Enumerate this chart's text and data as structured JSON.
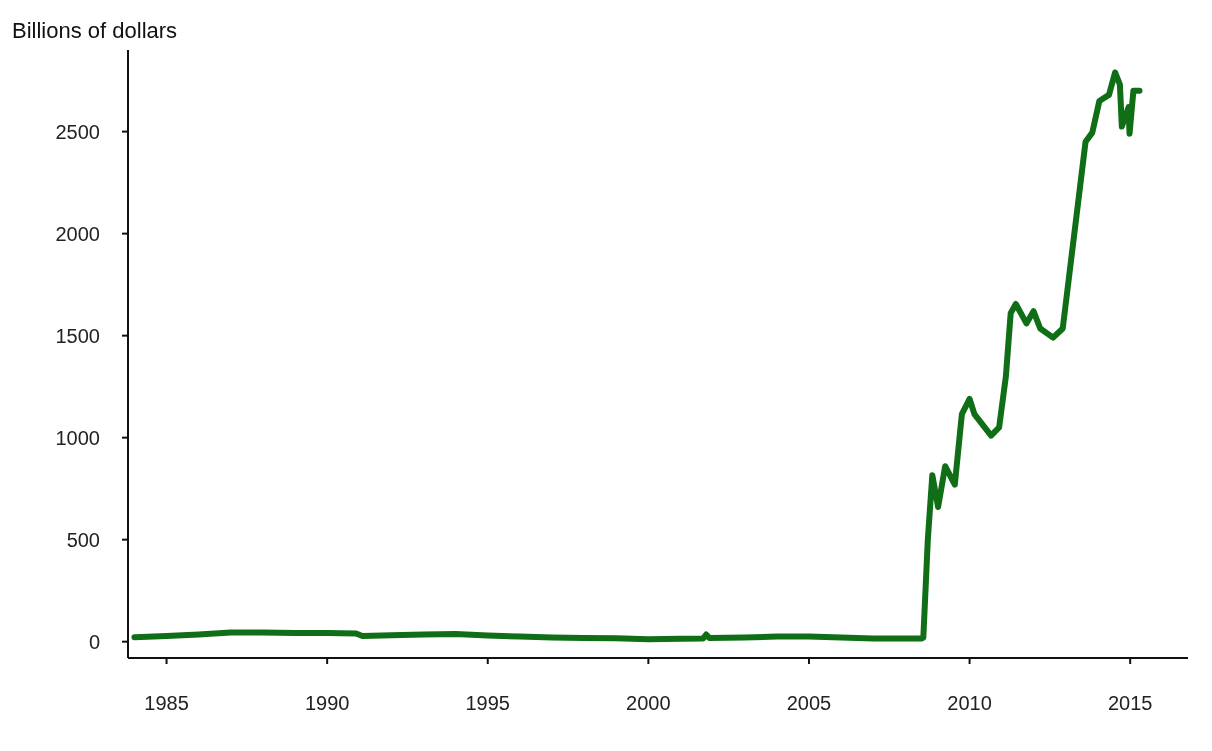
{
  "chart_data": {
    "type": "line",
    "ylabel": "Billions of dollars",
    "x": [
      1984.0,
      1985.0,
      1986.0,
      1987.0,
      1988.0,
      1989.0,
      1990.0,
      1990.9,
      1991.1,
      1992.0,
      1993.0,
      1994.0,
      1995.0,
      1996.0,
      1997.0,
      1998.0,
      1999.0,
      2000.0,
      2001.0,
      2001.7,
      2001.8,
      2001.9,
      2003.0,
      2004.0,
      2005.0,
      2006.0,
      2007.0,
      2008.0,
      2008.5,
      2008.56,
      2008.7,
      2008.84,
      2009.02,
      2009.24,
      2009.54,
      2009.76,
      2010.0,
      2010.15,
      2010.67,
      2010.92,
      2011.13,
      2011.28,
      2011.44,
      2011.77,
      2011.99,
      2012.2,
      2012.6,
      2012.9,
      2013.61,
      2013.82,
      2014.04,
      2014.34,
      2014.53,
      2014.68,
      2014.74,
      2014.95,
      2014.98,
      2015.1,
      2015.29
    ],
    "series": [
      {
        "color": "#0f6e16",
        "values": [
          22,
          28,
          35,
          45,
          45,
          43,
          42,
          40,
          28,
          32,
          35,
          38,
          30,
          25,
          20,
          18,
          17,
          12,
          14,
          15,
          35,
          18,
          20,
          25,
          25,
          20,
          15,
          15,
          15,
          20,
          500,
          816,
          660,
          860,
          770,
          1115,
          1190,
          1115,
          1010,
          1050,
          1300,
          1610,
          1655,
          1560,
          1620,
          1535,
          1490,
          1535,
          2450,
          2495,
          2650,
          2680,
          2790,
          2730,
          2525,
          2620,
          2490,
          2700,
          2700
        ]
      }
    ],
    "xlim": [
      1983.8,
      2016.8
    ],
    "xticks": [
      1985,
      1990,
      1995,
      2000,
      2005,
      2010,
      2015
    ],
    "ylim": [
      -80,
      2900
    ],
    "yticks": [
      0,
      500,
      1000,
      1500,
      2000,
      2500
    ],
    "grid": false,
    "legend": false,
    "marker": "none",
    "line_style": "solid"
  }
}
